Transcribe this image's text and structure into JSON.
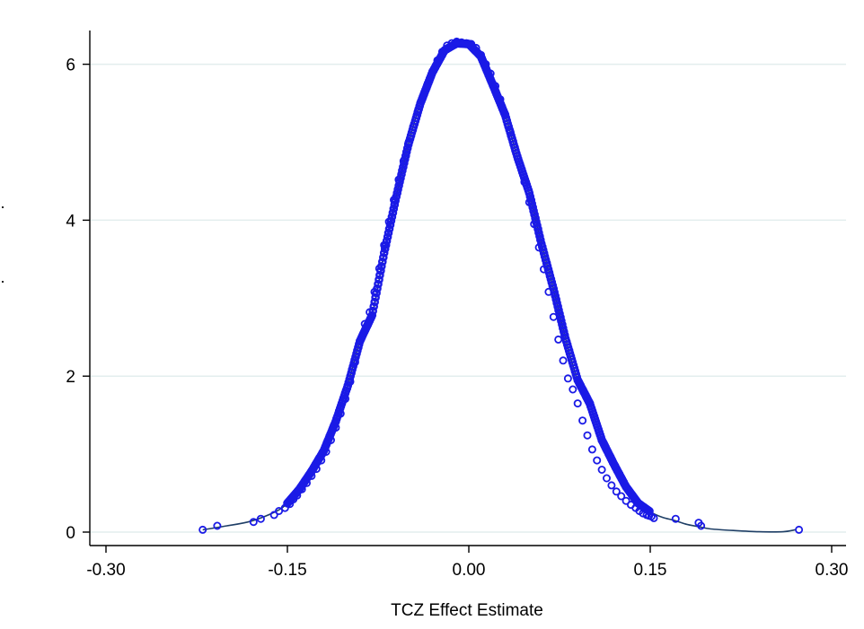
{
  "chart_data": {
    "type": "scatter",
    "title": "",
    "xlabel": "TCZ Effect Estimate",
    "ylabel": "",
    "xlim": [
      -0.3,
      0.3
    ],
    "ylim": [
      0,
      6.4
    ],
    "x_ticks": [
      "-0.30",
      "-0.15",
      "0.00",
      "0.15",
      "0.30"
    ],
    "x_tick_values": [
      -0.3,
      -0.15,
      0.0,
      0.15,
      0.3
    ],
    "y_ticks": [
      "0",
      "2",
      "4",
      "6"
    ],
    "y_tick_values": [
      0,
      2,
      4,
      6
    ],
    "grid": "horizontal",
    "colors": {
      "points": "#1a1ae6",
      "curve": "#1f3f66",
      "grid": "#e3eeee",
      "axis": "#000000"
    },
    "series": [
      {
        "type": "line",
        "x": [
          -0.22,
          -0.2,
          -0.18,
          -0.16,
          -0.15,
          -0.14,
          -0.13,
          -0.12,
          -0.11,
          -0.1,
          -0.09,
          -0.08,
          -0.07,
          -0.06,
          -0.05,
          -0.04,
          -0.03,
          -0.02,
          -0.01,
          0.0,
          0.01,
          0.02,
          0.03,
          0.04,
          0.05,
          0.06,
          0.07,
          0.08,
          0.09,
          0.1,
          0.11,
          0.12,
          0.13,
          0.14,
          0.15,
          0.16,
          0.17,
          0.18,
          0.19,
          0.2,
          0.22,
          0.24,
          0.26,
          0.27
        ],
        "y": [
          0.03,
          0.08,
          0.14,
          0.26,
          0.37,
          0.55,
          0.78,
          1.04,
          1.42,
          1.88,
          2.45,
          2.78,
          3.58,
          4.3,
          4.97,
          5.5,
          5.9,
          6.18,
          6.27,
          6.26,
          6.1,
          5.73,
          5.35,
          4.82,
          4.35,
          3.7,
          3.12,
          2.48,
          1.95,
          1.65,
          1.18,
          0.87,
          0.58,
          0.37,
          0.26,
          0.19,
          0.15,
          0.1,
          0.07,
          0.04,
          0.02,
          0.005,
          0.005,
          0.03
        ]
      },
      {
        "type": "scatter",
        "marker": "hollow-circle",
        "x": [
          -0.22,
          -0.208,
          -0.178,
          -0.172,
          -0.161,
          -0.157,
          -0.152,
          -0.148,
          -0.145,
          -0.142,
          -0.138,
          -0.134,
          -0.13,
          -0.126,
          -0.122,
          -0.118,
          -0.114,
          -0.11,
          -0.106,
          -0.102,
          -0.098,
          -0.094,
          -0.09,
          -0.086,
          -0.082,
          -0.078,
          -0.074,
          -0.07,
          -0.066,
          -0.062,
          -0.058,
          -0.054,
          -0.05,
          -0.046,
          -0.042,
          -0.038,
          -0.034,
          -0.03,
          -0.026,
          -0.022,
          -0.018,
          -0.014,
          -0.01,
          -0.006,
          -0.002,
          0.002,
          0.006,
          0.01,
          0.014,
          0.018,
          0.022,
          0.026,
          0.03,
          0.034,
          0.038,
          0.042,
          0.046,
          0.05,
          0.054,
          0.058,
          0.062,
          0.066,
          0.07,
          0.074,
          0.078,
          0.082,
          0.086,
          0.09,
          0.094,
          0.098,
          0.102,
          0.106,
          0.11,
          0.114,
          0.118,
          0.122,
          0.126,
          0.13,
          0.134,
          0.138,
          0.141,
          0.144,
          0.147,
          0.149,
          0.151,
          0.153,
          0.171,
          0.19,
          0.192,
          0.273
        ],
        "y": [
          0.03,
          0.08,
          0.13,
          0.17,
          0.22,
          0.27,
          0.31,
          0.36,
          0.42,
          0.47,
          0.55,
          0.63,
          0.72,
          0.81,
          0.92,
          1.03,
          1.18,
          1.34,
          1.52,
          1.71,
          1.93,
          2.18,
          2.45,
          2.67,
          2.82,
          3.08,
          3.38,
          3.68,
          3.98,
          4.26,
          4.52,
          4.76,
          4.99,
          5.2,
          5.4,
          5.58,
          5.75,
          5.91,
          6.05,
          6.16,
          6.24,
          6.27,
          6.29,
          6.28,
          6.27,
          6.26,
          6.21,
          6.12,
          6.0,
          5.88,
          5.72,
          5.55,
          5.36,
          5.15,
          4.93,
          4.72,
          4.49,
          4.23,
          3.95,
          3.65,
          3.37,
          3.08,
          2.76,
          2.47,
          2.2,
          1.97,
          1.83,
          1.65,
          1.43,
          1.24,
          1.06,
          0.92,
          0.8,
          0.69,
          0.6,
          0.52,
          0.46,
          0.4,
          0.35,
          0.31,
          0.27,
          0.24,
          0.22,
          0.21,
          0.2,
          0.18,
          0.17,
          0.12,
          0.08,
          0.03
        ]
      }
    ]
  }
}
